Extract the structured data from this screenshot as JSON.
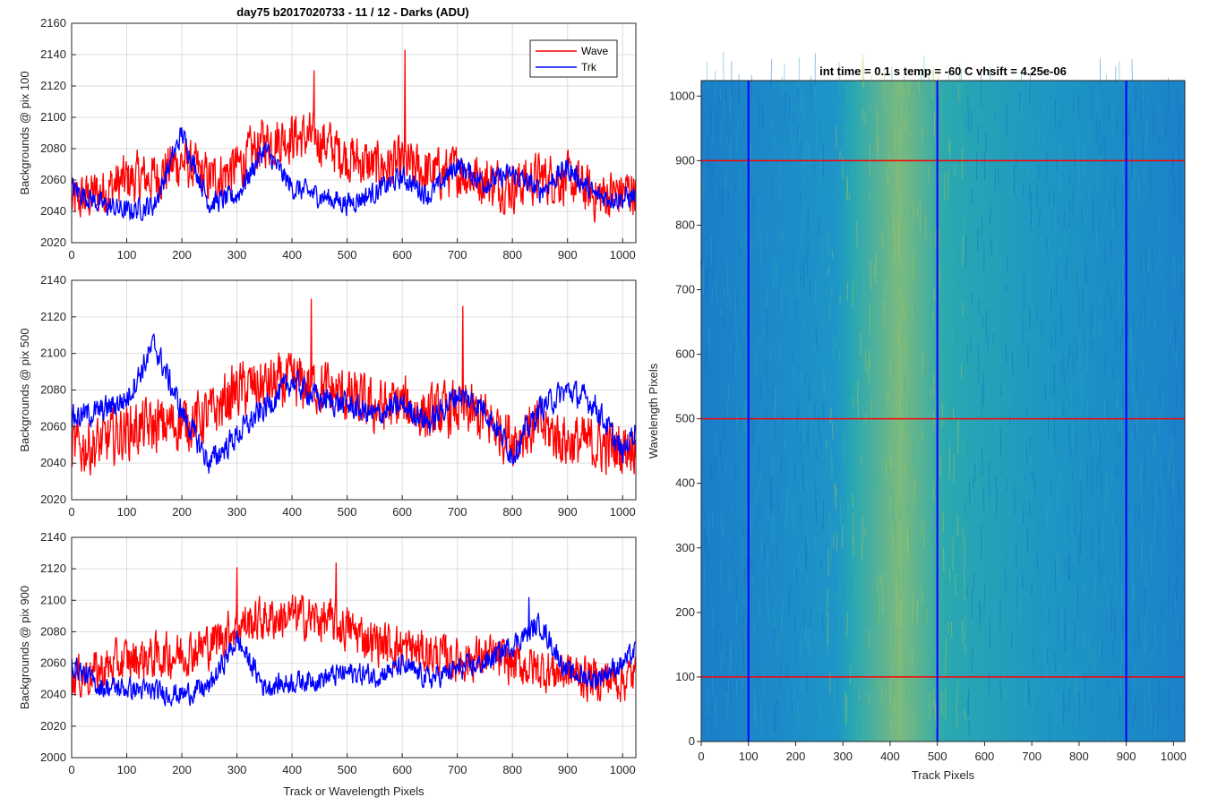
{
  "figure_title": "day75 b2017020733 - 11 / 12 - Darks (ADU)",
  "colors": {
    "wave": "#ff0000",
    "trk": "#0000ff",
    "grid": "#dedede",
    "axis": "#262626"
  },
  "chart_data": [
    {
      "type": "line",
      "title": "day75 b2017020733 - 11 / 12 - Darks (ADU)",
      "xlabel": "",
      "ylabel": "Backgrounds @ pix 100",
      "xlim": [
        0,
        1024
      ],
      "ylim": [
        2020,
        2160
      ],
      "xticks": [
        0,
        100,
        200,
        300,
        400,
        500,
        600,
        700,
        800,
        900,
        1000
      ],
      "yticks": [
        2020,
        2040,
        2060,
        2080,
        2100,
        2120,
        2140,
        2160
      ],
      "grid": true,
      "legend": {
        "position": "top-right",
        "entries": [
          "Wave",
          "Trk"
        ]
      },
      "series": [
        {
          "name": "Wave",
          "color": "#ff0000",
          "x": [
            0,
            50,
            100,
            150,
            200,
            250,
            300,
            350,
            400,
            450,
            500,
            550,
            600,
            650,
            700,
            750,
            800,
            850,
            900,
            950,
            1000,
            1024
          ],
          "values": [
            2045,
            2052,
            2060,
            2062,
            2072,
            2060,
            2068,
            2085,
            2088,
            2086,
            2075,
            2068,
            2070,
            2064,
            2066,
            2060,
            2056,
            2062,
            2060,
            2050,
            2052,
            2055
          ],
          "noise": 16,
          "spikes": [
            [
              440,
              2130
            ],
            [
              605,
              2143
            ]
          ]
        },
        {
          "name": "Trk",
          "color": "#0000ff",
          "x": [
            0,
            50,
            100,
            150,
            200,
            250,
            300,
            350,
            400,
            450,
            500,
            550,
            600,
            650,
            700,
            750,
            800,
            850,
            900,
            950,
            1000,
            1024
          ],
          "values": [
            2055,
            2045,
            2040,
            2044,
            2090,
            2045,
            2050,
            2080,
            2055,
            2050,
            2045,
            2052,
            2062,
            2050,
            2070,
            2058,
            2064,
            2053,
            2068,
            2050,
            2048,
            2050
          ],
          "noise": 7,
          "spikes": []
        }
      ]
    },
    {
      "type": "line",
      "title": "",
      "xlabel": "",
      "ylabel": "Backgrounds @ pix 500",
      "xlim": [
        0,
        1024
      ],
      "ylim": [
        2020,
        2140
      ],
      "xticks": [
        0,
        100,
        200,
        300,
        400,
        500,
        600,
        700,
        800,
        900,
        1000
      ],
      "yticks": [
        2020,
        2040,
        2060,
        2080,
        2100,
        2120,
        2140
      ],
      "grid": true,
      "series": [
        {
          "name": "Wave",
          "color": "#ff0000",
          "x": [
            0,
            50,
            100,
            150,
            200,
            250,
            300,
            350,
            400,
            450,
            500,
            550,
            600,
            650,
            700,
            750,
            800,
            850,
            900,
            950,
            1000,
            1024
          ],
          "values": [
            2048,
            2050,
            2058,
            2060,
            2062,
            2066,
            2080,
            2082,
            2084,
            2082,
            2076,
            2070,
            2072,
            2066,
            2070,
            2064,
            2054,
            2060,
            2052,
            2050,
            2048,
            2052
          ],
          "noise": 15,
          "spikes": [
            [
              435,
              2130
            ],
            [
              710,
              2126
            ]
          ]
        },
        {
          "name": "Trk",
          "color": "#0000ff",
          "x": [
            0,
            50,
            100,
            150,
            200,
            250,
            300,
            350,
            400,
            450,
            500,
            550,
            600,
            650,
            700,
            750,
            800,
            850,
            900,
            950,
            1000,
            1024
          ],
          "values": [
            2065,
            2068,
            2075,
            2105,
            2068,
            2040,
            2055,
            2070,
            2085,
            2075,
            2072,
            2066,
            2072,
            2062,
            2078,
            2070,
            2045,
            2070,
            2080,
            2072,
            2045,
            2060
          ],
          "noise": 7,
          "spikes": []
        }
      ]
    },
    {
      "type": "line",
      "title": "",
      "xlabel": "Track or Wavelength Pixels",
      "ylabel": "Backgrounds @ pix 900",
      "xlim": [
        0,
        1024
      ],
      "ylim": [
        2000,
        2140
      ],
      "xticks": [
        0,
        100,
        200,
        300,
        400,
        500,
        600,
        700,
        800,
        900,
        1000
      ],
      "yticks": [
        2000,
        2020,
        2040,
        2060,
        2080,
        2100,
        2120,
        2140
      ],
      "grid": true,
      "series": [
        {
          "name": "Wave",
          "color": "#ff0000",
          "x": [
            0,
            50,
            100,
            150,
            200,
            250,
            300,
            350,
            400,
            450,
            500,
            550,
            600,
            650,
            700,
            750,
            800,
            850,
            900,
            950,
            1000,
            1024
          ],
          "values": [
            2050,
            2055,
            2062,
            2064,
            2066,
            2072,
            2084,
            2088,
            2090,
            2088,
            2082,
            2074,
            2070,
            2066,
            2062,
            2064,
            2060,
            2056,
            2054,
            2050,
            2050,
            2052
          ],
          "noise": 14,
          "spikes": [
            [
              300,
              2121
            ],
            [
              480,
              2124
            ]
          ]
        },
        {
          "name": "Trk",
          "color": "#0000ff",
          "x": [
            0,
            50,
            100,
            150,
            200,
            250,
            300,
            350,
            400,
            450,
            500,
            550,
            600,
            650,
            700,
            750,
            800,
            850,
            900,
            950,
            1000,
            1024
          ],
          "values": [
            2060,
            2045,
            2044,
            2042,
            2040,
            2045,
            2075,
            2045,
            2048,
            2050,
            2054,
            2052,
            2058,
            2050,
            2056,
            2060,
            2072,
            2085,
            2054,
            2050,
            2060,
            2068
          ],
          "noise": 7,
          "spikes": [
            [
              830,
              2102
            ]
          ]
        }
      ]
    },
    {
      "type": "heatmap",
      "title": "int time = 0.1 s   temp = -60 C   vhsift = 4.25e-06",
      "xlabel": "Track Pixels",
      "ylabel": "Wavelength Pixels",
      "xlim": [
        0,
        1024
      ],
      "ylim": [
        0,
        1024
      ],
      "xticks": [
        0,
        100,
        200,
        300,
        400,
        500,
        600,
        700,
        800,
        900,
        1000
      ],
      "yticks": [
        0,
        100,
        200,
        300,
        400,
        500,
        600,
        700,
        800,
        900,
        1000
      ],
      "colormap": "parula",
      "bright_band_track_pixels": [
        320,
        520
      ],
      "marker_lines": {
        "vertical_track_pixels": [
          100,
          500,
          900
        ],
        "vertical_color": "#0000ff",
        "horizontal_wavelength_pixels": [
          100,
          500,
          900
        ],
        "horizontal_color": "#ff0000"
      }
    }
  ]
}
